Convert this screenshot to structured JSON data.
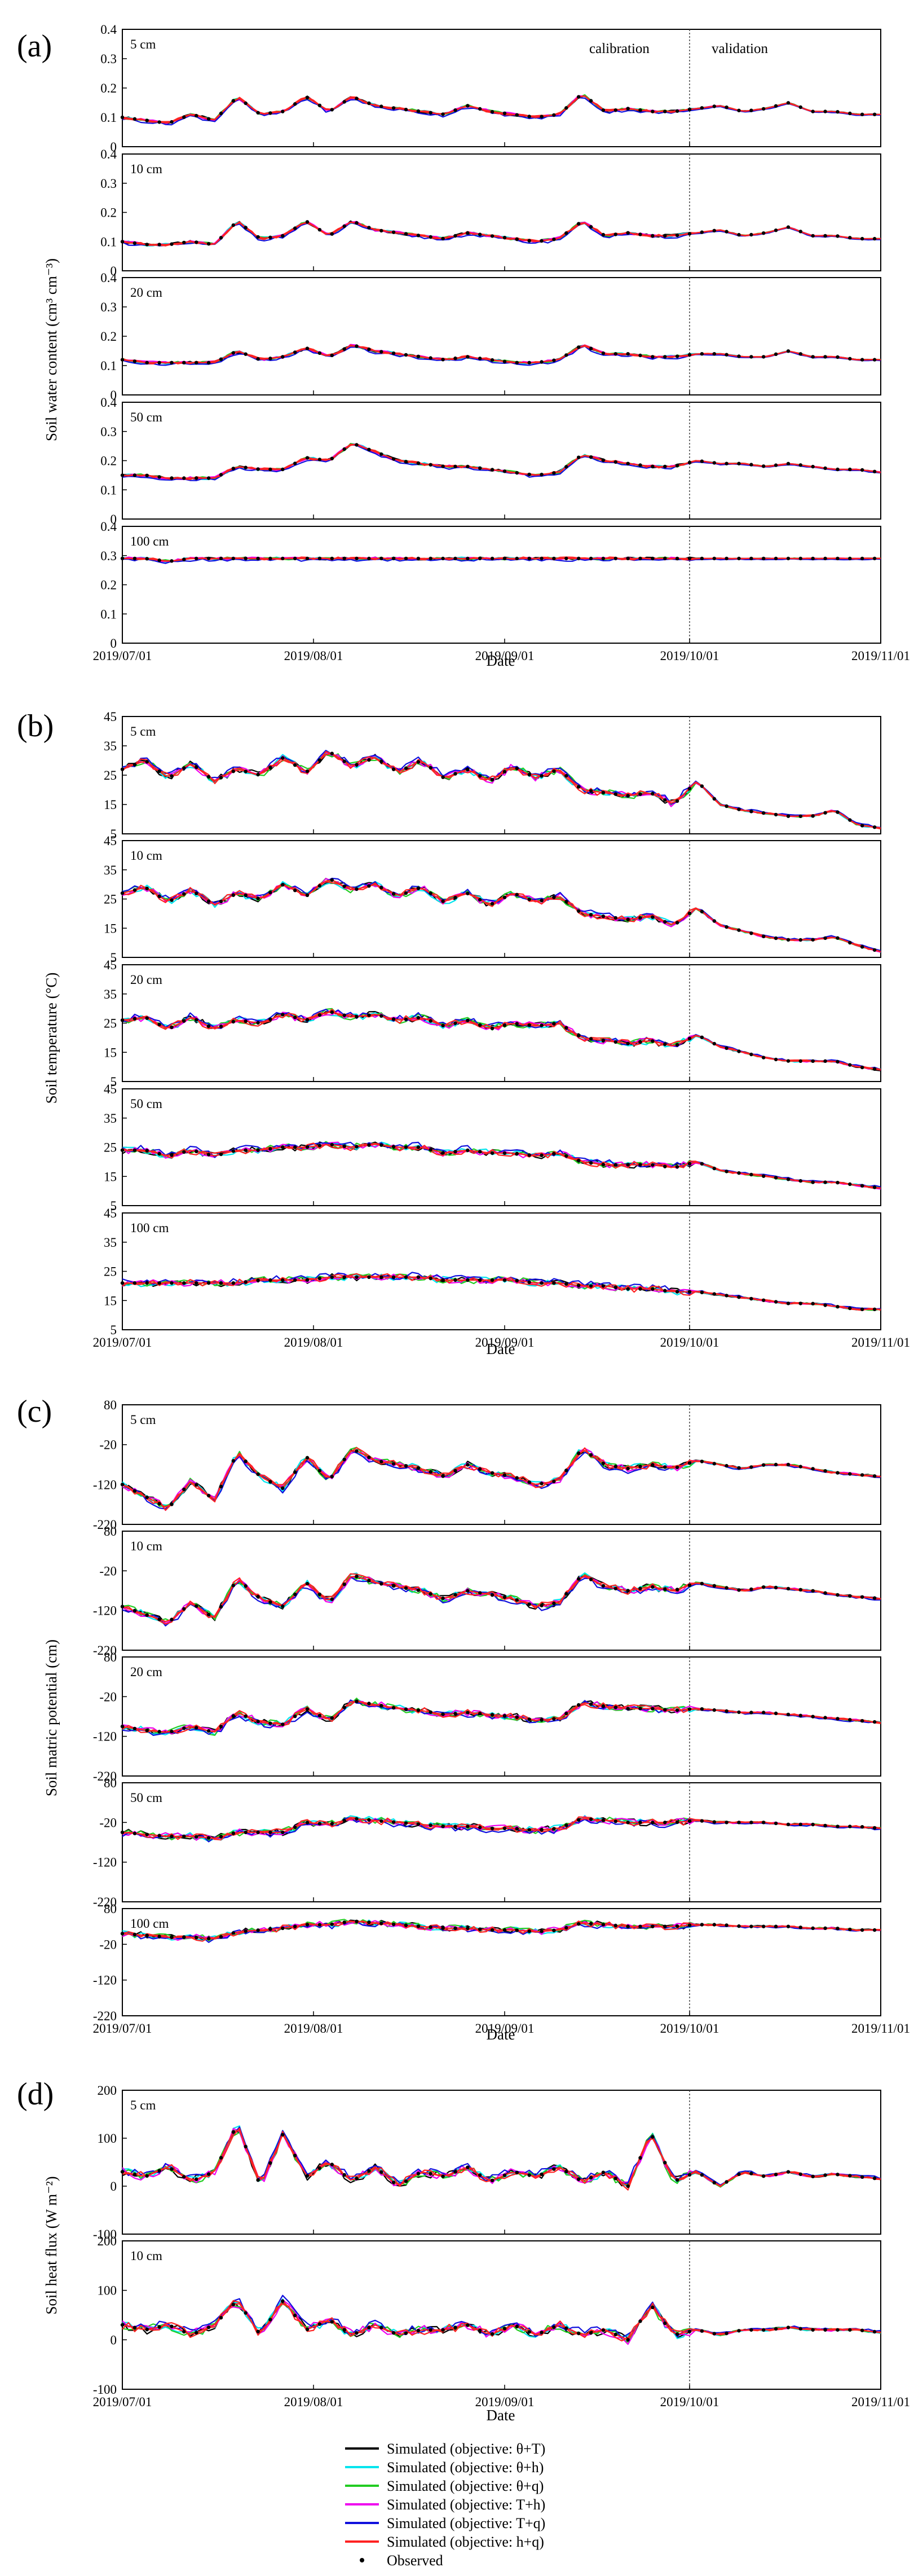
{
  "figure": {
    "x_dates": [
      "2019/07/01",
      "2019/08/01",
      "2019/09/01",
      "2019/10/01",
      "2019/11/01"
    ],
    "x_label": "Date",
    "calibration_label": "calibration",
    "validation_label": "validation"
  },
  "legend": {
    "items": [
      {
        "label": "Simulated (objective: θ+T)",
        "color": "#000000"
      },
      {
        "label": "Simulated (objective: θ+h)",
        "color": "#00e5ee"
      },
      {
        "label": "Simulated (objective: θ+q)",
        "color": "#22cc22"
      },
      {
        "label": "Simulated (objective: T+h)",
        "color": "#ee00ee"
      },
      {
        "label": "Simulated (objective: T+q)",
        "color": "#1010dd"
      },
      {
        "label": "Simulated (objective: h+q)",
        "color": "#ff2222"
      }
    ],
    "observed_label": "Observed"
  },
  "chart_data": [
    {
      "panel": "(a)",
      "type": "line",
      "ylabel": "Soil water content (cm³ cm⁻³)",
      "x_range": [
        "2019-07-01",
        "2019-11-01"
      ],
      "subplots": [
        {
          "depth": "5 cm",
          "ylim": [
            0,
            0.4
          ],
          "yticks": [
            "0",
            "0.1",
            "0.2",
            "0.3",
            "0.4"
          ],
          "pattern": [
            0.1,
            0.09,
            0.08,
            0.11,
            0.09,
            0.17,
            0.11,
            0.12,
            0.17,
            0.12,
            0.17,
            0.14,
            0.13,
            0.12,
            0.11,
            0.14,
            0.12,
            0.11,
            0.1,
            0.11,
            0.18,
            0.12,
            0.13,
            0.12,
            0.12,
            0.13,
            0.14,
            0.12,
            0.13,
            0.15,
            0.12,
            0.12,
            0.11,
            0.11
          ]
        },
        {
          "depth": "10 cm",
          "ylim": [
            0,
            0.4
          ],
          "yticks": [
            "0",
            "0.1",
            "0.2",
            "0.3",
            "0.4"
          ],
          "pattern": [
            0.1,
            0.09,
            0.09,
            0.1,
            0.09,
            0.17,
            0.11,
            0.12,
            0.17,
            0.12,
            0.17,
            0.14,
            0.13,
            0.12,
            0.11,
            0.13,
            0.12,
            0.11,
            0.1,
            0.11,
            0.17,
            0.12,
            0.13,
            0.12,
            0.12,
            0.13,
            0.14,
            0.12,
            0.13,
            0.15,
            0.12,
            0.12,
            0.11,
            0.11
          ]
        },
        {
          "depth": "20 cm",
          "ylim": [
            0,
            0.4
          ],
          "yticks": [
            "0",
            "0.1",
            "0.2",
            "0.3",
            "0.4"
          ],
          "pattern": [
            0.12,
            0.11,
            0.11,
            0.11,
            0.11,
            0.15,
            0.12,
            0.13,
            0.16,
            0.13,
            0.17,
            0.15,
            0.14,
            0.13,
            0.12,
            0.13,
            0.12,
            0.11,
            0.11,
            0.12,
            0.17,
            0.14,
            0.14,
            0.13,
            0.13,
            0.14,
            0.14,
            0.13,
            0.13,
            0.15,
            0.13,
            0.13,
            0.12,
            0.12
          ]
        },
        {
          "depth": "50 cm",
          "ylim": [
            0,
            0.4
          ],
          "yticks": [
            "0",
            "0.1",
            "0.2",
            "0.3",
            "0.4"
          ],
          "pattern": [
            0.15,
            0.15,
            0.14,
            0.14,
            0.14,
            0.18,
            0.17,
            0.17,
            0.21,
            0.2,
            0.26,
            0.23,
            0.2,
            0.19,
            0.18,
            0.18,
            0.17,
            0.16,
            0.15,
            0.16,
            0.22,
            0.2,
            0.19,
            0.18,
            0.18,
            0.2,
            0.19,
            0.19,
            0.18,
            0.19,
            0.18,
            0.17,
            0.17,
            0.16
          ]
        },
        {
          "depth": "100 cm",
          "ylim": [
            0,
            0.4
          ],
          "yticks": [
            "0",
            "0.1",
            "0.2",
            "0.3",
            "0.4"
          ],
          "pattern": [
            0.29,
            0.29,
            0.28,
            0.29,
            0.29,
            0.29,
            0.29,
            0.29,
            0.29,
            0.29,
            0.29,
            0.29,
            0.29,
            0.29,
            0.29,
            0.29,
            0.29,
            0.29,
            0.29,
            0.29,
            0.29,
            0.29,
            0.29,
            0.29,
            0.29,
            0.29,
            0.29,
            0.29,
            0.29,
            0.29,
            0.29,
            0.29,
            0.29,
            0.29
          ]
        }
      ]
    },
    {
      "panel": "(b)",
      "type": "line",
      "ylabel": "Soil temperature (°C)",
      "x_range": [
        "2019-07-01",
        "2019-11-01"
      ],
      "subplots": [
        {
          "depth": "5 cm",
          "ylim": [
            5,
            45
          ],
          "yticks": [
            "5",
            "15",
            "25",
            "35",
            "45"
          ],
          "pattern": [
            27,
            30,
            24,
            29,
            23,
            27,
            25,
            31,
            26,
            33,
            28,
            31,
            26,
            30,
            24,
            27,
            23,
            28,
            24,
            27,
            20,
            19,
            18,
            19,
            15,
            23,
            15,
            13,
            12,
            11,
            11,
            13,
            8,
            7
          ]
        },
        {
          "depth": "10 cm",
          "ylim": [
            5,
            45
          ],
          "yticks": [
            "5",
            "15",
            "25",
            "35",
            "45"
          ],
          "pattern": [
            27,
            29,
            24,
            28,
            23,
            27,
            25,
            30,
            26,
            32,
            28,
            30,
            26,
            29,
            24,
            27,
            23,
            27,
            24,
            26,
            20,
            19,
            18,
            19,
            16,
            22,
            16,
            14,
            12,
            11,
            11,
            12,
            9,
            7
          ]
        },
        {
          "depth": "20 cm",
          "ylim": [
            5,
            45
          ],
          "yticks": [
            "5",
            "15",
            "25",
            "35",
            "45"
          ],
          "pattern": [
            26,
            27,
            23,
            27,
            23,
            26,
            25,
            28,
            26,
            29,
            27,
            28,
            26,
            27,
            24,
            26,
            23,
            25,
            24,
            25,
            20,
            19,
            18,
            19,
            17,
            21,
            17,
            15,
            13,
            12,
            12,
            12,
            10,
            9
          ]
        },
        {
          "depth": "50 cm",
          "ylim": [
            5,
            45
          ],
          "yticks": [
            "5",
            "15",
            "25",
            "35",
            "45"
          ],
          "pattern": [
            24,
            24,
            22,
            24,
            22,
            24,
            24,
            25,
            25,
            26,
            25,
            26,
            25,
            25,
            23,
            24,
            23,
            23,
            22,
            23,
            20,
            19,
            19,
            19,
            18,
            20,
            17,
            16,
            15,
            14,
            13,
            13,
            12,
            11
          ]
        },
        {
          "depth": "100 cm",
          "ylim": [
            5,
            45
          ],
          "yticks": [
            "5",
            "15",
            "25",
            "35",
            "45"
          ],
          "pattern": [
            21,
            21,
            21,
            21,
            21,
            21,
            22,
            22,
            22,
            23,
            23,
            23,
            23,
            23,
            22,
            22,
            22,
            22,
            21,
            21,
            20,
            20,
            19,
            19,
            18,
            18,
            17,
            16,
            15,
            14,
            14,
            13,
            12,
            12
          ]
        }
      ]
    },
    {
      "panel": "(c)",
      "type": "line",
      "ylabel": "Soil matric potential (cm)",
      "x_range": [
        "2019-07-01",
        "2019-11-01"
      ],
      "subplots": [
        {
          "depth": "5 cm",
          "ylim": [
            -220,
            80
          ],
          "yticks": [
            "-220",
            "-120",
            "-20",
            "80"
          ],
          "pattern": [
            -120,
            -150,
            -180,
            -110,
            -160,
            -40,
            -100,
            -130,
            -50,
            -110,
            -30,
            -60,
            -70,
            -80,
            -100,
            -70,
            -90,
            -100,
            -120,
            -110,
            -30,
            -70,
            -80,
            -70,
            -80,
            -60,
            -70,
            -80,
            -70,
            -70,
            -80,
            -90,
            -95,
            -100
          ]
        },
        {
          "depth": "10 cm",
          "ylim": [
            -220,
            80
          ],
          "yticks": [
            "-220",
            "-120",
            "-20",
            "80"
          ],
          "pattern": [
            -110,
            -130,
            -150,
            -100,
            -140,
            -40,
            -90,
            -110,
            -50,
            -100,
            -30,
            -50,
            -60,
            -70,
            -90,
            -70,
            -80,
            -90,
            -110,
            -100,
            -30,
            -60,
            -70,
            -60,
            -70,
            -50,
            -60,
            -70,
            -60,
            -65,
            -70,
            -80,
            -85,
            -90
          ]
        },
        {
          "depth": "20 cm",
          "ylim": [
            -220,
            80
          ],
          "yticks": [
            "-220",
            "-120",
            "-20",
            "80"
          ],
          "pattern": [
            -95,
            -105,
            -110,
            -95,
            -110,
            -60,
            -85,
            -90,
            -50,
            -80,
            -30,
            -40,
            -50,
            -55,
            -65,
            -60,
            -65,
            -70,
            -80,
            -75,
            -35,
            -45,
            -50,
            -50,
            -55,
            -50,
            -55,
            -60,
            -60,
            -65,
            -70,
            -75,
            -80,
            -85
          ]
        },
        {
          "depth": "50 cm",
          "ylim": [
            -220,
            80
          ],
          "yticks": [
            "-220",
            "-120",
            "-20",
            "80"
          ],
          "pattern": [
            -45,
            -50,
            -55,
            -55,
            -60,
            -45,
            -45,
            -45,
            -20,
            -25,
            -10,
            -15,
            -20,
            -25,
            -30,
            -30,
            -35,
            -35,
            -40,
            -35,
            -10,
            -15,
            -20,
            -20,
            -20,
            -15,
            -20,
            -20,
            -20,
            -25,
            -25,
            -30,
            -30,
            -35
          ]
        },
        {
          "depth": "100 cm",
          "ylim": [
            -220,
            80
          ],
          "yticks": [
            "-220",
            "-120",
            "-20",
            "80"
          ],
          "pattern": [
            10,
            5,
            0,
            0,
            -5,
            15,
            20,
            25,
            35,
            35,
            45,
            40,
            35,
            30,
            25,
            25,
            20,
            20,
            15,
            20,
            40,
            35,
            30,
            30,
            30,
            35,
            35,
            30,
            30,
            30,
            25,
            25,
            20,
            20
          ]
        }
      ]
    },
    {
      "panel": "(d)",
      "type": "line",
      "ylabel": "Soil heat flux (W m⁻²)",
      "x_range": [
        "2019-07-01",
        "2019-11-01"
      ],
      "subplots": [
        {
          "depth": "5 cm",
          "ylim": [
            -100,
            200
          ],
          "yticks": [
            "-100",
            "0",
            "100",
            "200"
          ],
          "pattern": [
            30,
            20,
            40,
            10,
            30,
            130,
            0,
            110,
            20,
            50,
            10,
            40,
            0,
            30,
            20,
            40,
            10,
            30,
            20,
            40,
            10,
            30,
            0,
            110,
            10,
            30,
            0,
            30,
            20,
            30,
            20,
            25,
            20,
            15
          ]
        },
        {
          "depth": "10 cm",
          "ylim": [
            -100,
            200
          ],
          "yticks": [
            "-100",
            "0",
            "100",
            "200"
          ],
          "pattern": [
            30,
            20,
            30,
            10,
            30,
            80,
            10,
            80,
            20,
            40,
            10,
            30,
            10,
            20,
            20,
            30,
            10,
            30,
            10,
            30,
            10,
            20,
            0,
            70,
            10,
            20,
            10,
            20,
            20,
            25,
            20,
            20,
            20,
            15
          ]
        }
      ]
    }
  ],
  "panels": {
    "a": {
      "label": "(a)",
      "ylabel": "Soil water content (cm³ cm⁻³)",
      "depths": [
        "5 cm",
        "10 cm",
        "20 cm",
        "50 cm",
        "100 cm"
      ],
      "yticks": [
        "0",
        "0.1",
        "0.2",
        "0.3",
        "0.4"
      ]
    },
    "b": {
      "label": "(b)",
      "ylabel": "Soil temperature (°C)",
      "depths": [
        "5 cm",
        "10 cm",
        "20 cm",
        "50 cm",
        "100 cm"
      ],
      "yticks": [
        "5",
        "15",
        "25",
        "35",
        "45"
      ]
    },
    "c": {
      "label": "(c)",
      "ylabel": "Soil matric potential (cm)",
      "depths": [
        "5 cm",
        "10 cm",
        "20 cm",
        "50 cm",
        "100 cm"
      ],
      "yticks": [
        "-220",
        "-120",
        "-20",
        "80"
      ]
    },
    "d": {
      "label": "(d)",
      "ylabel": "Soil heat flux (W m⁻²)",
      "depths": [
        "5 cm",
        "10 cm"
      ],
      "yticks": [
        "-100",
        "0",
        "100",
        "200"
      ]
    }
  }
}
